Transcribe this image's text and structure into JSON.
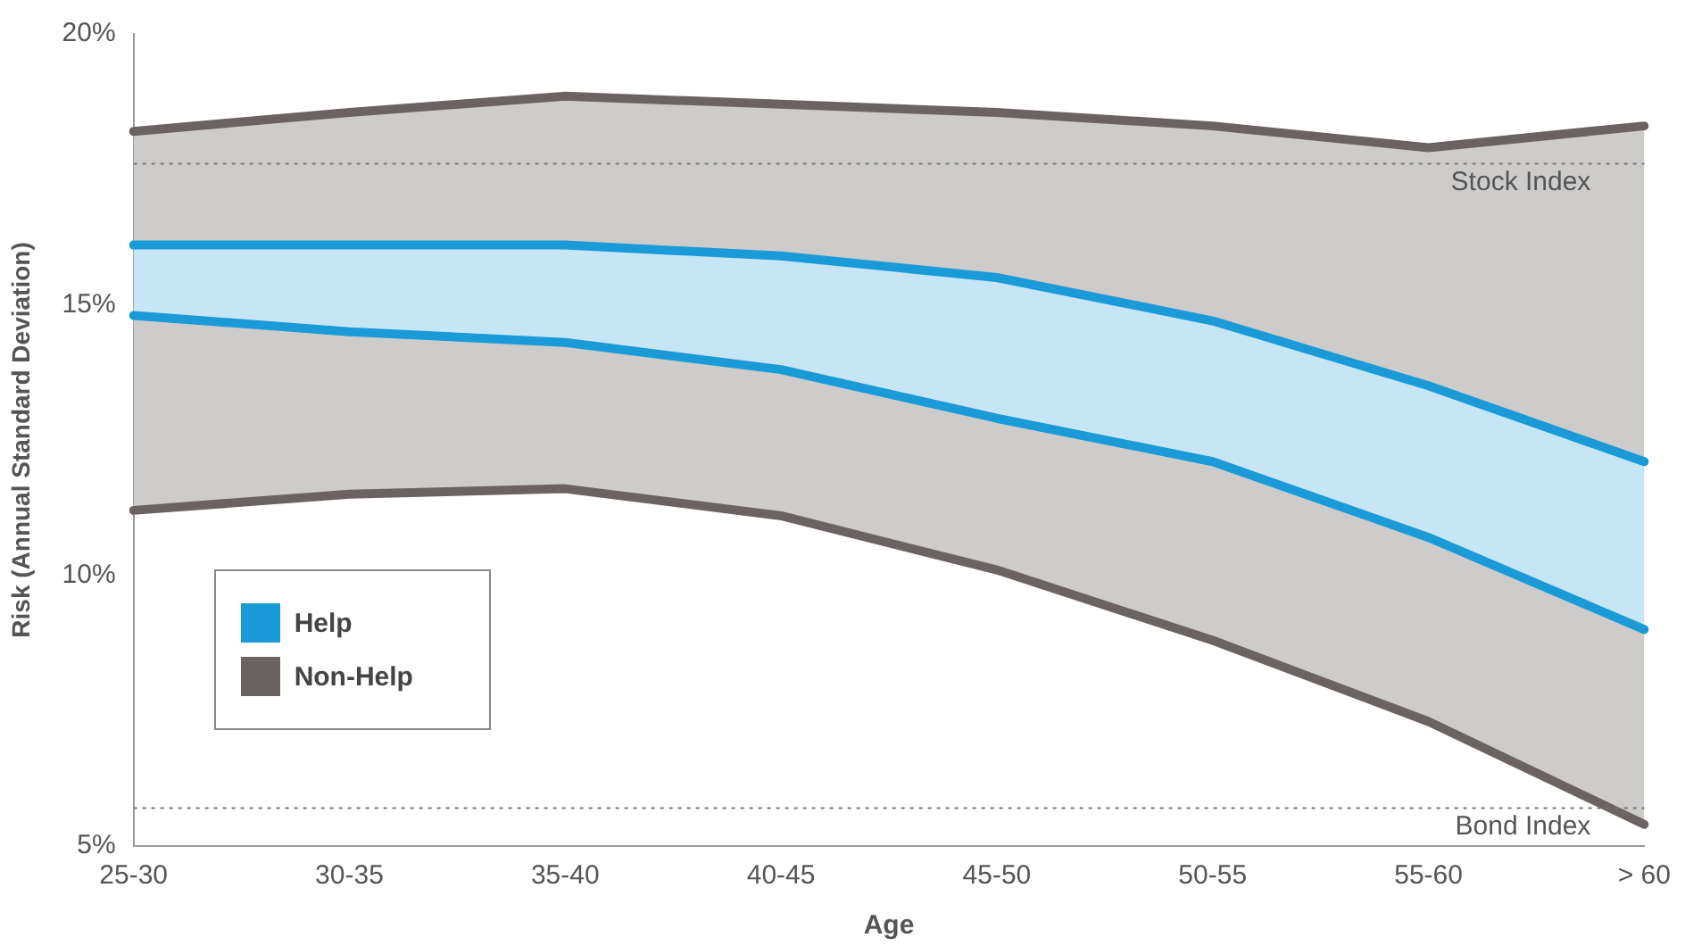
{
  "chart_data": {
    "type": "area",
    "xlabel": "Age",
    "ylabel": "Risk (Annual Standard Deviation)",
    "categories": [
      "25-30",
      "30-35",
      "35-40",
      "40-45",
      "45-50",
      "50-55",
      "55-60",
      "> 60"
    ],
    "series": [
      {
        "name": "Help",
        "color": "#1a9ad6",
        "values": [
          16.1,
          16.1,
          16.1,
          15.9,
          15.5,
          14.7,
          13.5,
          12.1
        ]
      },
      {
        "type": "line",
        "color": "#1a9ad6",
        "values": [
          14.8,
          14.5,
          14.3,
          13.8,
          12.9,
          12.1,
          10.7,
          9.0
        ]
      },
      {
        "name": "Non-Help",
        "color": "#6b6361",
        "values": [
          18.2,
          18.55,
          18.85,
          18.7,
          18.55,
          18.3,
          17.9,
          18.3
        ]
      },
      {
        "type": "line",
        "color": "#6b6361",
        "values": [
          11.2,
          11.5,
          11.6,
          11.1,
          10.1,
          8.8,
          7.3,
          5.4
        ]
      }
    ],
    "ylim": [
      5,
      20
    ],
    "yticks": [
      {
        "value": 5,
        "label": "5%"
      },
      {
        "value": 10,
        "label": "10%"
      },
      {
        "value": 15,
        "label": "15%"
      },
      {
        "value": 20,
        "label": "20%"
      }
    ],
    "ref_lines": [
      {
        "axis": "y",
        "value": 17.6,
        "label": "Stock Index",
        "color": "#777777",
        "line_style": "dotted"
      },
      {
        "axis": "y",
        "value": 5.7,
        "label": "Bond Index",
        "color": "#777777",
        "line_style": "dotted"
      }
    ],
    "grid": false,
    "legend": "bottom left",
    "marker": "none",
    "line_style": "solid"
  }
}
